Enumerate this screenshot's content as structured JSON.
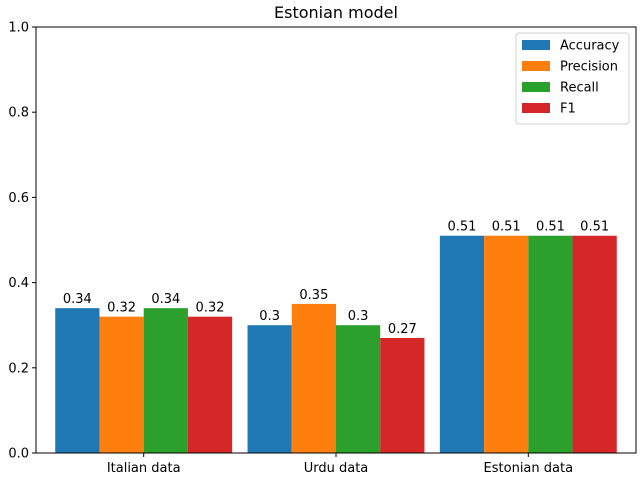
{
  "chart_data": {
    "type": "bar",
    "title": "Estonian model",
    "xlabel": "",
    "ylabel": "",
    "categories": [
      "Italian data",
      "Urdu data",
      "Estonian data"
    ],
    "series": [
      {
        "name": "Accuracy",
        "color": "#1f77b4",
        "values": [
          0.34,
          0.3,
          0.51
        ]
      },
      {
        "name": "Precision",
        "color": "#ff7f0e",
        "values": [
          0.32,
          0.35,
          0.51
        ]
      },
      {
        "name": "Recall",
        "color": "#2ca02c",
        "values": [
          0.34,
          0.3,
          0.51
        ]
      },
      {
        "name": "F1",
        "color": "#d62728",
        "values": [
          0.32,
          0.27,
          0.51
        ]
      }
    ],
    "ylim": [
      0,
      1.0
    ],
    "yticks": [
      "0.0",
      "0.2",
      "0.4",
      "0.6",
      "0.8",
      "1.0"
    ],
    "grid": false,
    "legend": "top-right"
  }
}
